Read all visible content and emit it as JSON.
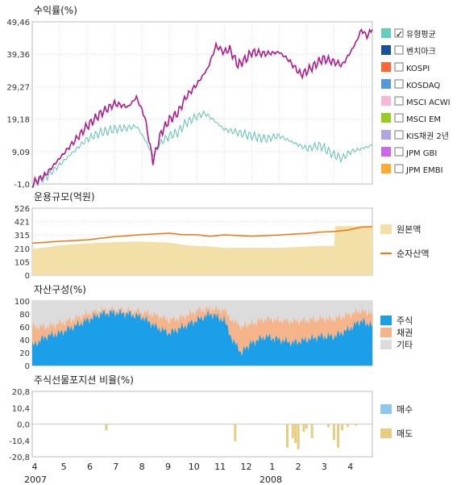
{
  "x_axis": {
    "ticks": [
      "4",
      "5",
      "6",
      "7",
      "8",
      "9",
      "10",
      "11",
      "12",
      "1",
      "2",
      "3",
      "4"
    ],
    "year_labels": [
      "2007",
      "2008"
    ]
  },
  "chart_data": [
    {
      "type": "line",
      "title": "수익률(%)",
      "yticks": [
        "49,46",
        "39,36",
        "29,27",
        "19,18",
        "9,09",
        "-1,0"
      ],
      "ylim": [
        -1.0,
        49.46
      ],
      "grid": true,
      "legend_position": "right",
      "legend": [
        {
          "label": "유형평균",
          "color": "#66ccbb",
          "checked": true
        },
        {
          "label": "벤치마크",
          "color": "#1a4f9c",
          "checked": false
        },
        {
          "label": "KOSPI",
          "color": "#ff6633",
          "checked": false
        },
        {
          "label": "KOSDAQ",
          "color": "#5599dd",
          "checked": false
        },
        {
          "label": "MSCI ACWI",
          "color": "#f5b8d8",
          "checked": false
        },
        {
          "label": "MSCI EM",
          "color": "#99cc22",
          "checked": false
        },
        {
          "label": "KIS채권 2년",
          "color": "#b3a6e0",
          "checked": false
        },
        {
          "label": "JPM GBI",
          "color": "#cc66ee",
          "checked": false
        },
        {
          "label": "JPM EMBI",
          "color": "#ffaa33",
          "checked": false
        }
      ],
      "series": [
        {
          "color": "#b01890",
          "points": [
            [
              4.0,
              -1
            ],
            [
              4.5,
              2
            ],
            [
              5.0,
              7
            ],
            [
              5.5,
              12
            ],
            [
              6.0,
              17
            ],
            [
              6.5,
              21
            ],
            [
              7.0,
              24
            ],
            [
              7.5,
              23
            ],
            [
              7.8,
              26
            ],
            [
              8.1,
              20
            ],
            [
              8.4,
              6
            ],
            [
              8.7,
              15
            ],
            [
              9.0,
              19
            ],
            [
              9.3,
              21
            ],
            [
              9.6,
              26
            ],
            [
              10.0,
              30
            ],
            [
              10.4,
              35
            ],
            [
              10.7,
              42
            ],
            [
              11.0,
              40
            ],
            [
              11.2,
              41
            ],
            [
              11.5,
              36
            ],
            [
              11.8,
              38
            ],
            [
              12.0,
              40
            ],
            [
              12.5,
              39.5
            ],
            [
              13.0,
              40
            ],
            [
              13.3,
              38
            ],
            [
              13.5,
              36
            ],
            [
              13.8,
              33
            ],
            [
              14.0,
              34
            ],
            [
              14.3,
              36
            ],
            [
              14.6,
              38
            ],
            [
              15.0,
              37
            ],
            [
              15.3,
              36
            ],
            [
              15.6,
              40
            ],
            [
              15.8,
              43
            ],
            [
              16.0,
              47
            ],
            [
              16.2,
              45
            ],
            [
              16.4,
              47
            ]
          ]
        },
        {
          "color": "#5cc2b2",
          "points": [
            [
              4.0,
              -1
            ],
            [
              4.5,
              1
            ],
            [
              5.0,
              5
            ],
            [
              5.5,
              9
            ],
            [
              6.0,
              13
            ],
            [
              6.5,
              15
            ],
            [
              7.0,
              16
            ],
            [
              7.5,
              16.5
            ],
            [
              7.8,
              17
            ],
            [
              8.1,
              13
            ],
            [
              8.4,
              8
            ],
            [
              8.7,
              12
            ],
            [
              9.0,
              14
            ],
            [
              9.3,
              15
            ],
            [
              9.6,
              18
            ],
            [
              10.0,
              20
            ],
            [
              10.3,
              21
            ],
            [
              10.6,
              19
            ],
            [
              11.0,
              16
            ],
            [
              11.5,
              15
            ],
            [
              12.0,
              14
            ],
            [
              12.5,
              13
            ],
            [
              13.0,
              14
            ],
            [
              13.5,
              12
            ],
            [
              14.0,
              10
            ],
            [
              14.5,
              11
            ],
            [
              15.0,
              8
            ],
            [
              15.3,
              7
            ],
            [
              15.6,
              9
            ],
            [
              16.0,
              10
            ],
            [
              16.4,
              11
            ]
          ]
        }
      ]
    },
    {
      "type": "area",
      "title": "운용규모(억원)",
      "yticks": [
        "526",
        "421",
        "315",
        "210",
        "105",
        "0"
      ],
      "ylim": [
        0,
        526
      ],
      "grid": true,
      "legend_position": "right",
      "legend": [
        {
          "label": "원본액",
          "color": "#f3e0a8"
        },
        {
          "label": "순자산액",
          "color": "#ee7711"
        }
      ],
      "series": [
        {
          "name": "원본액",
          "color": "#f3e0a8",
          "points": [
            [
              4.0,
              205
            ],
            [
              5.0,
              235
            ],
            [
              6.0,
              250
            ],
            [
              7.0,
              260
            ],
            [
              8.0,
              265
            ],
            [
              9.0,
              255
            ],
            [
              9.6,
              235
            ],
            [
              10.0,
              230
            ],
            [
              10.5,
              225
            ],
            [
              11.0,
              215
            ],
            [
              12.0,
              215
            ],
            [
              13.0,
              215
            ],
            [
              13.5,
              220
            ],
            [
              14.0,
              225
            ],
            [
              14.5,
              230
            ],
            [
              15.0,
              230
            ],
            [
              15.05,
              385
            ],
            [
              16.4,
              385
            ]
          ]
        },
        {
          "name": "순자산액",
          "color": "#ee7711",
          "points": [
            [
              4.0,
              250
            ],
            [
              5.0,
              265
            ],
            [
              6.0,
              280
            ],
            [
              7.0,
              300
            ],
            [
              8.0,
              320
            ],
            [
              9.0,
              330
            ],
            [
              9.5,
              320
            ],
            [
              10.0,
              315
            ],
            [
              10.5,
              305
            ],
            [
              11.0,
              320
            ],
            [
              11.5,
              310
            ],
            [
              12.0,
              305
            ],
            [
              13.0,
              315
            ],
            [
              13.5,
              320
            ],
            [
              14.0,
              330
            ],
            [
              14.5,
              340
            ],
            [
              15.0,
              340
            ],
            [
              15.5,
              355
            ],
            [
              16.0,
              380
            ],
            [
              16.4,
              385
            ]
          ]
        }
      ]
    },
    {
      "type": "area",
      "title": "자산구성(%)",
      "yticks": [
        "100",
        "80",
        "60",
        "40",
        "20",
        "0"
      ],
      "ylim": [
        0,
        100
      ],
      "grid": false,
      "legend_position": "right",
      "legend": [
        {
          "label": "주식",
          "color": "#1a9fe8"
        },
        {
          "label": "채권",
          "color": "#f6b48a"
        },
        {
          "label": "기타",
          "color": "#dcdcdc"
        }
      ],
      "series": [
        {
          "name": "주식",
          "color": "#1a9fe8",
          "points": [
            [
              4.0,
              30
            ],
            [
              4.5,
              45
            ],
            [
              5.0,
              50
            ],
            [
              5.5,
              60
            ],
            [
              6.0,
              70
            ],
            [
              6.5,
              80
            ],
            [
              7.0,
              82
            ],
            [
              7.5,
              80
            ],
            [
              8.0,
              75
            ],
            [
              8.5,
              60
            ],
            [
              9.0,
              50
            ],
            [
              9.5,
              60
            ],
            [
              10.0,
              70
            ],
            [
              10.5,
              80
            ],
            [
              11.0,
              70
            ],
            [
              11.3,
              40
            ],
            [
              11.6,
              20
            ],
            [
              12.0,
              35
            ],
            [
              12.5,
              45
            ],
            [
              13.0,
              40
            ],
            [
              13.5,
              35
            ],
            [
              14.0,
              40
            ],
            [
              14.5,
              45
            ],
            [
              15.0,
              45
            ],
            [
              15.5,
              55
            ],
            [
              16.0,
              70
            ],
            [
              16.4,
              60
            ]
          ]
        },
        {
          "name": "채권",
          "color": "#f6b48a",
          "points": [
            [
              4.0,
              60
            ],
            [
              4.5,
              60
            ],
            [
              5.0,
              65
            ],
            [
              5.5,
              72
            ],
            [
              6.0,
              80
            ],
            [
              6.5,
              85
            ],
            [
              7.0,
              86
            ],
            [
              7.5,
              85
            ],
            [
              8.0,
              83
            ],
            [
              8.5,
              78
            ],
            [
              9.0,
              70
            ],
            [
              9.5,
              75
            ],
            [
              10.0,
              85
            ],
            [
              10.5,
              88
            ],
            [
              11.0,
              85
            ],
            [
              11.3,
              70
            ],
            [
              11.6,
              60
            ],
            [
              12.0,
              65
            ],
            [
              12.5,
              72
            ],
            [
              13.0,
              70
            ],
            [
              13.5,
              68
            ],
            [
              14.0,
              70
            ],
            [
              14.5,
              72
            ],
            [
              15.0,
              72
            ],
            [
              15.5,
              78
            ],
            [
              16.0,
              85
            ],
            [
              16.4,
              80
            ]
          ]
        }
      ]
    },
    {
      "type": "bar",
      "title": "주식선물포지션 비율(%)",
      "yticks": [
        "20,8",
        "10,4",
        "0,0",
        "-10,4",
        "-20,8"
      ],
      "ylim": [
        -20.8,
        20.8
      ],
      "grid": false,
      "legend_position": "right",
      "legend": [
        {
          "label": "매수",
          "color": "#8ec7f0"
        },
        {
          "label": "매도",
          "color": "#e8cc80"
        }
      ],
      "bars": [
        {
          "x": 6.7,
          "y": -4
        },
        {
          "x": 11.4,
          "y": -11
        },
        {
          "x": 13.3,
          "y": -15
        },
        {
          "x": 13.5,
          "y": -9
        },
        {
          "x": 13.6,
          "y": -12
        },
        {
          "x": 13.7,
          "y": -16
        },
        {
          "x": 13.9,
          "y": -5
        },
        {
          "x": 14.0,
          "y": -3
        },
        {
          "x": 14.2,
          "y": -9
        },
        {
          "x": 14.8,
          "y": -2
        },
        {
          "x": 15.0,
          "y": -10
        },
        {
          "x": 15.15,
          "y": -15
        },
        {
          "x": 15.3,
          "y": -4
        },
        {
          "x": 15.5,
          "y": -2
        },
        {
          "x": 15.8,
          "y": -1
        }
      ]
    }
  ]
}
